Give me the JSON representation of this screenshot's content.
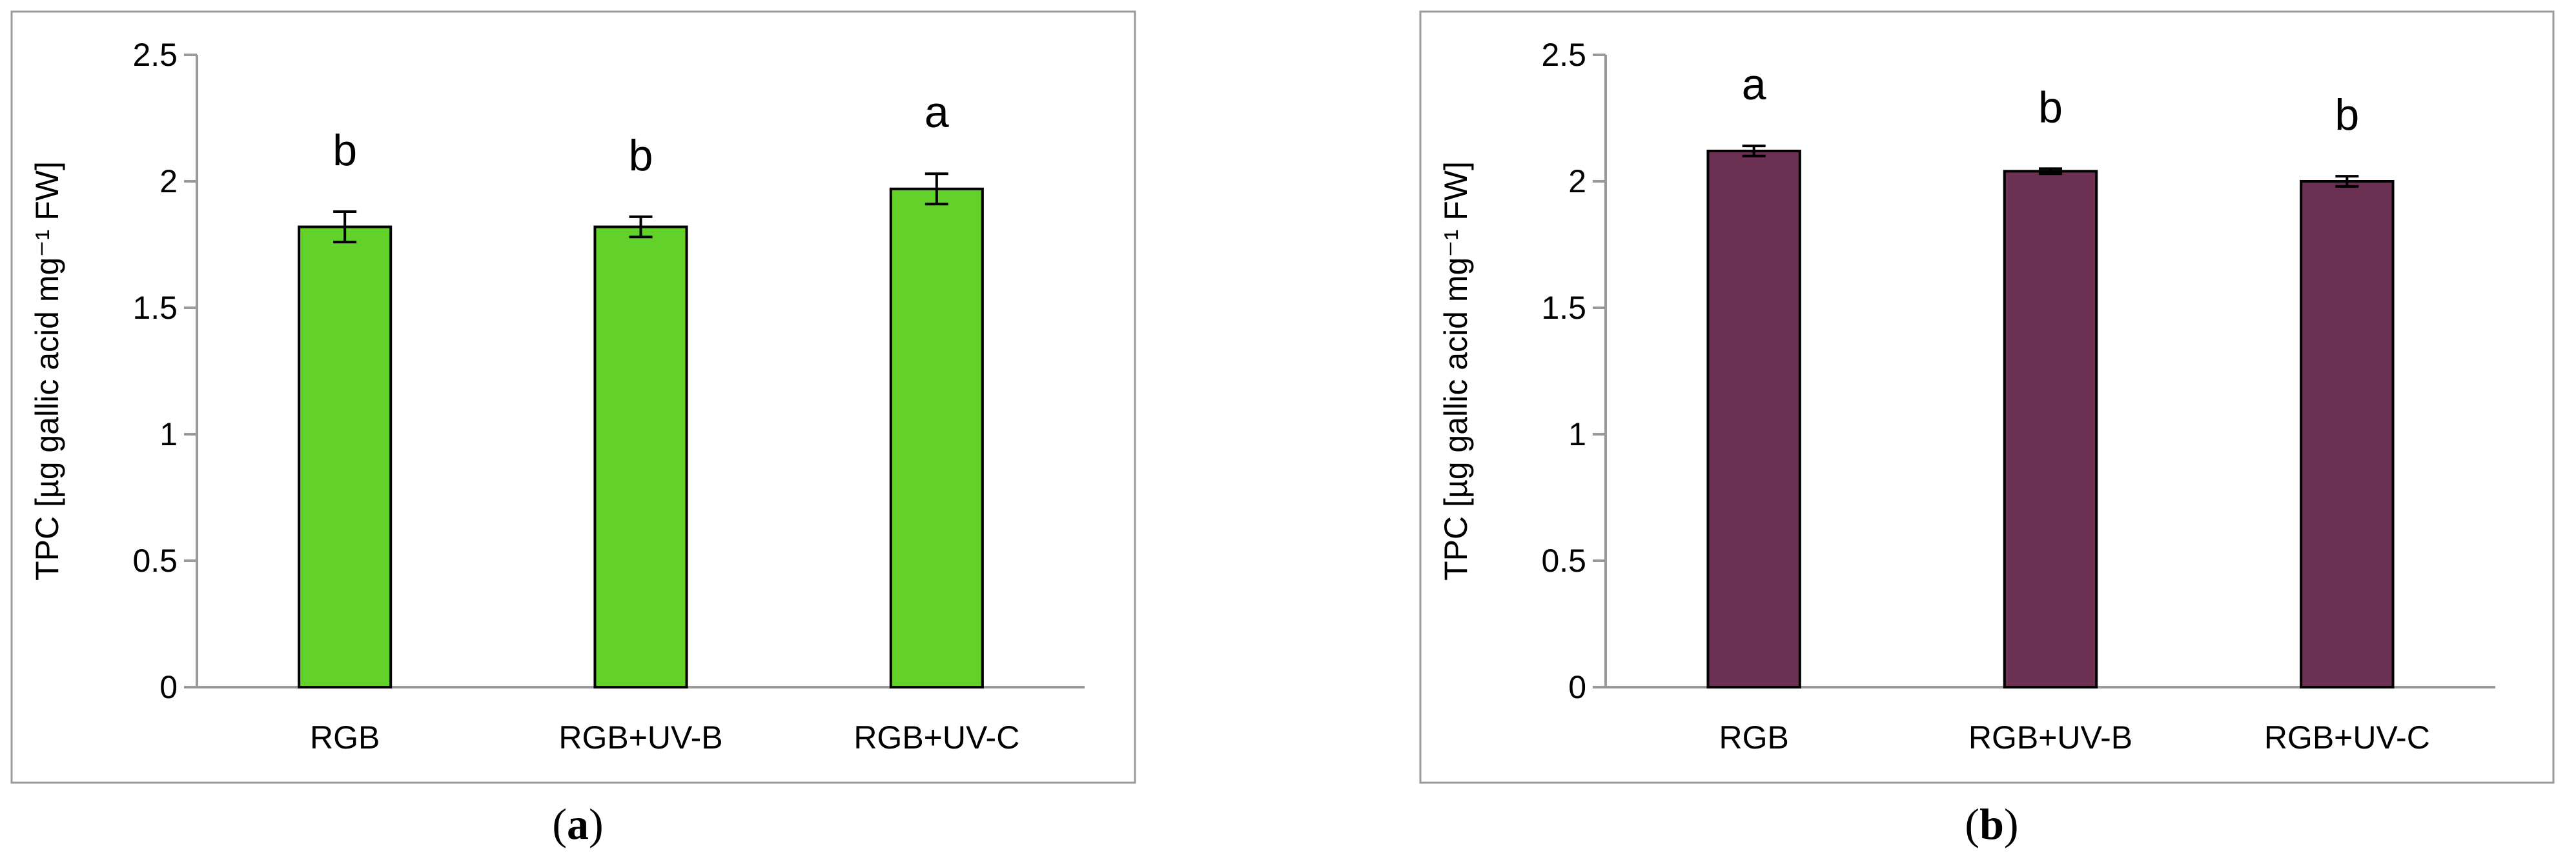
{
  "colors": {
    "panel_a_bar": "#62d22a",
    "panel_b_bar": "#6b3052"
  },
  "chart_data": [
    {
      "type": "bar",
      "panel": "(a)",
      "categories": [
        "RGB",
        "RGB+UV-B",
        "RGB+UV-C"
      ],
      "values": [
        1.82,
        1.82,
        1.97
      ],
      "errors": [
        0.06,
        0.04,
        0.06
      ],
      "significance": [
        "b",
        "b",
        "a"
      ],
      "ylabel": "TPC [µg gallic acid  mg⁻¹ FW]",
      "ylim": [
        0,
        2.5
      ],
      "yticks": [
        "0",
        "0.5",
        "1",
        "1.5",
        "2",
        "2.5"
      ],
      "grid": false,
      "color": "#62d22a"
    },
    {
      "type": "bar",
      "panel": "(b)",
      "categories": [
        "RGB",
        "RGB+UV-B",
        "RGB+UV-C"
      ],
      "values": [
        2.12,
        2.04,
        2.0
      ],
      "errors": [
        0.02,
        0.01,
        0.02
      ],
      "significance": [
        "a",
        "b",
        "b"
      ],
      "ylabel": "TPC [µg gallic acid mg⁻¹ FW]",
      "ylim": [
        0,
        2.5
      ],
      "yticks": [
        "0",
        "0.5",
        "1",
        "1.5",
        "2",
        "2.5"
      ],
      "grid": false,
      "color": "#6b3052"
    }
  ]
}
